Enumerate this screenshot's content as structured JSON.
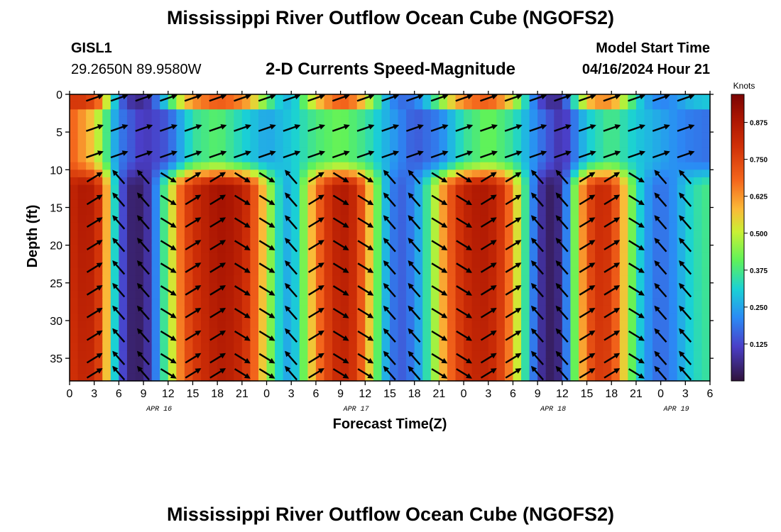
{
  "header": {
    "title": "Mississippi River Outflow Ocean Cube (NGOFS2)",
    "station_id": "GISL1",
    "station_coords": "29.2650N  89.9580W",
    "subtitle": "2-D Currents Speed-Magnitude",
    "model_start_label": "Model Start Time",
    "model_start_value": "04/16/2024 Hour 21"
  },
  "footer": {
    "title": "Mississippi River Outflow Ocean Cube (NGOFS2)"
  },
  "chart_data": {
    "type": "heatmap",
    "xlabel": "Forecast Time(Z)",
    "ylabel": "Depth (ft)",
    "x_ticks": [
      "0",
      "3",
      "6",
      "9",
      "12",
      "15",
      "18",
      "21",
      "0",
      "3",
      "6",
      "9",
      "12",
      "15",
      "18",
      "21",
      "0",
      "3",
      "6",
      "9",
      "12",
      "15",
      "18",
      "21",
      "0",
      "3",
      "6"
    ],
    "x_range_hours": [
      0,
      78
    ],
    "date_labels": [
      {
        "label": "APR 16",
        "hour": 9
      },
      {
        "label": "APR 17",
        "hour": 33
      },
      {
        "label": "APR 18",
        "hour": 57
      },
      {
        "label": "APR 19",
        "hour": 72
      }
    ],
    "y_ticks": [
      0,
      5,
      10,
      15,
      20,
      25,
      30,
      35
    ],
    "y_range_ft": [
      0,
      38
    ],
    "y_inverted": true,
    "colorbar": {
      "title": "Knots",
      "ticks": [
        "0.875",
        "0.750",
        "0.625",
        "0.500",
        "0.375",
        "0.250",
        "0.125"
      ],
      "tick_values": [
        0.875,
        0.75,
        0.625,
        0.5,
        0.375,
        0.25,
        0.125
      ],
      "range": [
        0.0,
        0.97
      ]
    },
    "deep_layer_speed_profile": [
      [
        0,
        0.82
      ],
      [
        1,
        0.86
      ],
      [
        2,
        0.88
      ],
      [
        3,
        0.85
      ],
      [
        4,
        0.75
      ],
      [
        5,
        0.45
      ],
      [
        6,
        0.2
      ],
      [
        7,
        0.06
      ],
      [
        8,
        0.03
      ],
      [
        9,
        0.05
      ],
      [
        10,
        0.12
      ],
      [
        11,
        0.3
      ],
      [
        12,
        0.45
      ],
      [
        13,
        0.62
      ],
      [
        14,
        0.74
      ],
      [
        15,
        0.8
      ],
      [
        16,
        0.84
      ],
      [
        17,
        0.87
      ],
      [
        18,
        0.9
      ],
      [
        19,
        0.9
      ],
      [
        20,
        0.88
      ],
      [
        21,
        0.85
      ],
      [
        22,
        0.78
      ],
      [
        23,
        0.66
      ],
      [
        24,
        0.52
      ],
      [
        25,
        0.38
      ],
      [
        26,
        0.28
      ],
      [
        27,
        0.26
      ],
      [
        28,
        0.36
      ],
      [
        29,
        0.52
      ],
      [
        30,
        0.66
      ],
      [
        31,
        0.76
      ],
      [
        32,
        0.83
      ],
      [
        33,
        0.87
      ],
      [
        34,
        0.86
      ],
      [
        35,
        0.8
      ],
      [
        36,
        0.66
      ],
      [
        37,
        0.5
      ],
      [
        38,
        0.34
      ],
      [
        39,
        0.22
      ],
      [
        40,
        0.16
      ],
      [
        41,
        0.17
      ],
      [
        42,
        0.22
      ],
      [
        43,
        0.3
      ],
      [
        44,
        0.42
      ],
      [
        45,
        0.56
      ],
      [
        46,
        0.68
      ],
      [
        47,
        0.77
      ],
      [
        48,
        0.83
      ],
      [
        49,
        0.86
      ],
      [
        50,
        0.88
      ],
      [
        51,
        0.87
      ],
      [
        52,
        0.83
      ],
      [
        53,
        0.76
      ],
      [
        54,
        0.62
      ],
      [
        55,
        0.45
      ],
      [
        56,
        0.28
      ],
      [
        57,
        0.12
      ],
      [
        58,
        0.04
      ],
      [
        59,
        0.03
      ],
      [
        60,
        0.09
      ],
      [
        61,
        0.32
      ],
      [
        62,
        0.55
      ],
      [
        63,
        0.72
      ],
      [
        64,
        0.8
      ],
      [
        65,
        0.82
      ],
      [
        66,
        0.78
      ],
      [
        67,
        0.66
      ],
      [
        68,
        0.5
      ],
      [
        69,
        0.36
      ],
      [
        70,
        0.26
      ],
      [
        71,
        0.2
      ],
      [
        72,
        0.18
      ],
      [
        73,
        0.2
      ],
      [
        74,
        0.24
      ],
      [
        75,
        0.3
      ],
      [
        76,
        0.34
      ],
      [
        77,
        0.36
      ],
      [
        78,
        0.38
      ]
    ],
    "surface_layer_speed_profile": [
      [
        0,
        0.7
      ],
      [
        3,
        0.55
      ],
      [
        6,
        0.2
      ],
      [
        9,
        0.1
      ],
      [
        12,
        0.15
      ],
      [
        15,
        0.35
      ],
      [
        18,
        0.4
      ],
      [
        21,
        0.32
      ],
      [
        24,
        0.25
      ],
      [
        27,
        0.3
      ],
      [
        30,
        0.38
      ],
      [
        33,
        0.42
      ],
      [
        36,
        0.36
      ],
      [
        39,
        0.25
      ],
      [
        42,
        0.15
      ],
      [
        45,
        0.2
      ],
      [
        48,
        0.35
      ],
      [
        51,
        0.42
      ],
      [
        54,
        0.35
      ],
      [
        57,
        0.2
      ],
      [
        60,
        0.08
      ],
      [
        63,
        0.3
      ],
      [
        66,
        0.38
      ],
      [
        69,
        0.3
      ],
      [
        72,
        0.25
      ],
      [
        75,
        0.2
      ],
      [
        78,
        0.18
      ]
    ]
  }
}
